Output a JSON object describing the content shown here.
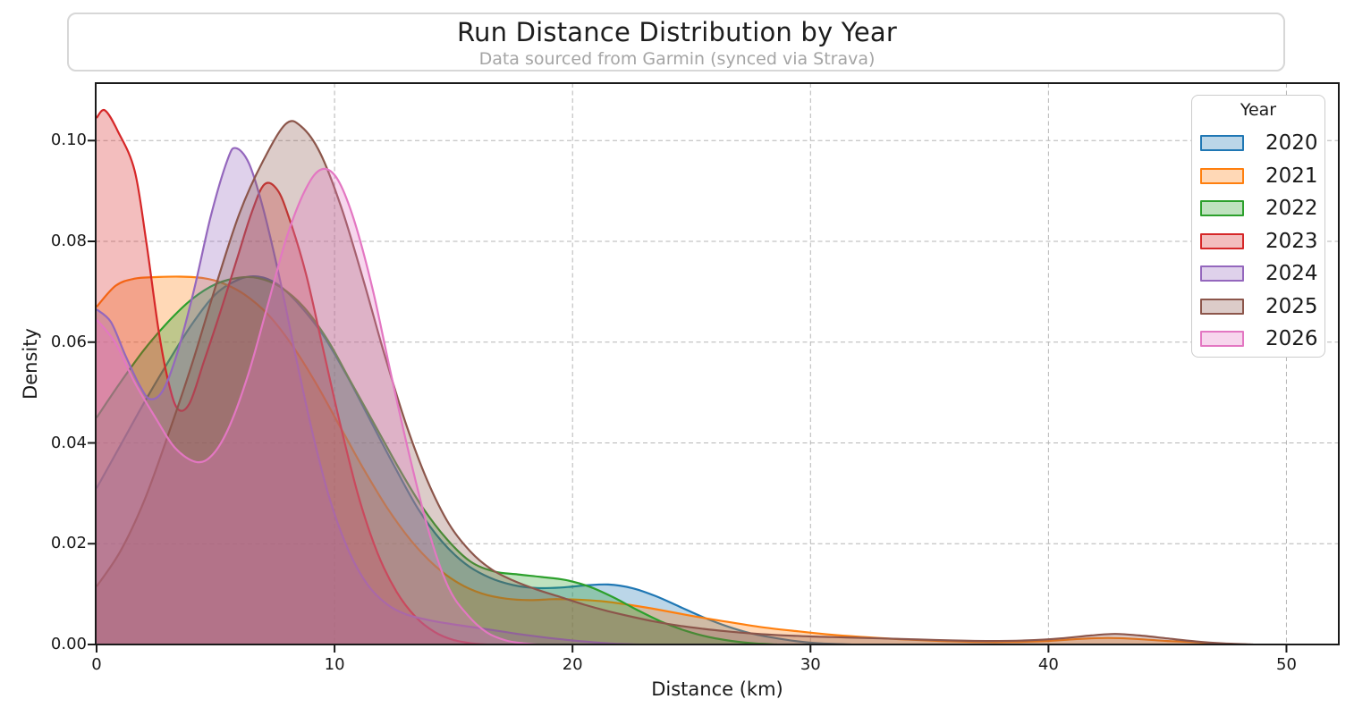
{
  "header": {
    "title": "Run Distance Distribution by Year",
    "subtitle": "Data sourced from Garmin (synced via Strava)"
  },
  "chart_data": {
    "type": "area",
    "subtype": "kde-density-curves",
    "title": "Run Distance Distribution by Year",
    "subtitle": "Data sourced from Garmin (synced via Strava)",
    "xlabel": "Distance (km)",
    "ylabel": "Density",
    "xlim": [
      0,
      52.2
    ],
    "ylim": [
      0,
      0.1114
    ],
    "x_ticks": [
      0,
      10,
      20,
      30,
      40,
      50
    ],
    "x_tick_labels": [
      "0",
      "10",
      "20",
      "30",
      "40",
      "50"
    ],
    "y_ticks": [
      0,
      0.02,
      0.04,
      0.06,
      0.08,
      0.1
    ],
    "y_tick_labels": [
      "0.00",
      "0.02",
      "0.04",
      "0.06",
      "0.08",
      "0.10"
    ],
    "grid": {
      "visible": true,
      "style": "dashed",
      "color": "#b5b5b5",
      "below_data": true
    },
    "legend": {
      "title": "Year",
      "position": "upper right"
    },
    "fill_opacity": 0.3,
    "series": [
      {
        "name": "2020",
        "color": "#1f77b4",
        "peak_km": 6.8,
        "peak_density": 0.073,
        "points": [
          [
            0,
            0.031
          ],
          [
            1,
            0.0395
          ],
          [
            2,
            0.048
          ],
          [
            3,
            0.056
          ],
          [
            4,
            0.0635
          ],
          [
            5,
            0.0695
          ],
          [
            6,
            0.0725
          ],
          [
            6.8,
            0.073
          ],
          [
            7.6,
            0.0715
          ],
          [
            8.5,
            0.0675
          ],
          [
            9.5,
            0.0615
          ],
          [
            10.5,
            0.0535
          ],
          [
            11.5,
            0.0445
          ],
          [
            12.5,
            0.0355
          ],
          [
            13.5,
            0.027
          ],
          [
            14.5,
            0.0205
          ],
          [
            15.5,
            0.016
          ],
          [
            16.5,
            0.0133
          ],
          [
            17.5,
            0.0118
          ],
          [
            18.5,
            0.0112
          ],
          [
            19.5,
            0.0113
          ],
          [
            20.5,
            0.0117
          ],
          [
            21.5,
            0.0119
          ],
          [
            22.5,
            0.0112
          ],
          [
            23.5,
            0.0096
          ],
          [
            24.5,
            0.0075
          ],
          [
            25.5,
            0.0054
          ],
          [
            26.5,
            0.0036
          ],
          [
            27.5,
            0.0022
          ],
          [
            28.5,
            0.0013
          ],
          [
            29.5,
            0.0006
          ],
          [
            30.5,
            0.0002
          ],
          [
            31.7,
            0
          ]
        ]
      },
      {
        "name": "2021",
        "color": "#ff7f0e",
        "peak_km": 3.5,
        "peak_density": 0.073,
        "points": [
          [
            0,
            0.067
          ],
          [
            0.8,
            0.0712
          ],
          [
            1.6,
            0.0726
          ],
          [
            2.5,
            0.0729
          ],
          [
            3.5,
            0.073
          ],
          [
            4.5,
            0.0727
          ],
          [
            5.3,
            0.0717
          ],
          [
            6.2,
            0.0695
          ],
          [
            7.2,
            0.0655
          ],
          [
            8.2,
            0.0595
          ],
          [
            9.2,
            0.052
          ],
          [
            10.2,
            0.0435
          ],
          [
            11.2,
            0.035
          ],
          [
            12.2,
            0.0272
          ],
          [
            13.2,
            0.0207
          ],
          [
            14.2,
            0.0157
          ],
          [
            15.2,
            0.0122
          ],
          [
            16.2,
            0.0101
          ],
          [
            17.2,
            0.0091
          ],
          [
            18.2,
            0.0088
          ],
          [
            19.2,
            0.009
          ],
          [
            20.2,
            0.0089
          ],
          [
            21.2,
            0.0086
          ],
          [
            22.2,
            0.008
          ],
          [
            23.5,
            0.007
          ],
          [
            25,
            0.0057
          ],
          [
            26.5,
            0.0045
          ],
          [
            28,
            0.0034
          ],
          [
            29.5,
            0.0026
          ],
          [
            31,
            0.0019
          ],
          [
            32.5,
            0.0014
          ],
          [
            34,
            0.001
          ],
          [
            35.5,
            0.0007
          ],
          [
            37,
            0.0005
          ],
          [
            38.5,
            0.0005
          ],
          [
            40,
            0.0007
          ],
          [
            41.3,
            0.0011
          ],
          [
            42.5,
            0.0013
          ],
          [
            43.7,
            0.0011
          ],
          [
            45,
            0.0007
          ],
          [
            46.3,
            0.0004
          ],
          [
            47.5,
            0.0001
          ],
          [
            48.3,
            0
          ]
        ]
      },
      {
        "name": "2022",
        "color": "#2ca02c",
        "peak_km": 6.4,
        "peak_density": 0.0728,
        "points": [
          [
            0,
            0.045
          ],
          [
            1,
            0.052
          ],
          [
            2,
            0.0585
          ],
          [
            3,
            0.064
          ],
          [
            4,
            0.0685
          ],
          [
            5,
            0.0715
          ],
          [
            6,
            0.0728
          ],
          [
            6.8,
            0.0727
          ],
          [
            7.7,
            0.071
          ],
          [
            8.7,
            0.067
          ],
          [
            9.7,
            0.0605
          ],
          [
            10.7,
            0.052
          ],
          [
            11.7,
            0.0435
          ],
          [
            12.7,
            0.035
          ],
          [
            13.7,
            0.0272
          ],
          [
            14.7,
            0.021
          ],
          [
            15.7,
            0.0165
          ],
          [
            16.7,
            0.0145
          ],
          [
            17.7,
            0.0139
          ],
          [
            18.7,
            0.0134
          ],
          [
            19.7,
            0.0128
          ],
          [
            20.7,
            0.0115
          ],
          [
            21.7,
            0.0094
          ],
          [
            22.7,
            0.0069
          ],
          [
            23.7,
            0.0046
          ],
          [
            24.7,
            0.0028
          ],
          [
            25.7,
            0.0015
          ],
          [
            26.7,
            0.0007
          ],
          [
            27.7,
            0.0002
          ],
          [
            28.6,
            0
          ]
        ]
      },
      {
        "name": "2023",
        "color": "#d62728",
        "peak_km": 0.35,
        "peak_density": 0.106,
        "points": [
          [
            0,
            0.1045
          ],
          [
            0.35,
            0.106
          ],
          [
            0.9,
            0.1018
          ],
          [
            1.6,
            0.094
          ],
          [
            2.1,
            0.0795
          ],
          [
            2.6,
            0.0625
          ],
          [
            3.0,
            0.0525
          ],
          [
            3.4,
            0.0468
          ],
          [
            3.9,
            0.0478
          ],
          [
            4.5,
            0.056
          ],
          [
            5.2,
            0.066
          ],
          [
            5.9,
            0.0765
          ],
          [
            6.5,
            0.0855
          ],
          [
            7.05,
            0.0913
          ],
          [
            7.6,
            0.0902
          ],
          [
            8.1,
            0.0845
          ],
          [
            8.8,
            0.0735
          ],
          [
            9.5,
            0.059
          ],
          [
            10.2,
            0.0445
          ],
          [
            11,
            0.0295
          ],
          [
            11.8,
            0.0182
          ],
          [
            12.6,
            0.0105
          ],
          [
            13.4,
            0.0055
          ],
          [
            14.2,
            0.0025
          ],
          [
            15,
            0.0009
          ],
          [
            15.8,
            0.0002
          ],
          [
            16.4,
            0
          ]
        ]
      },
      {
        "name": "2024",
        "color": "#9467bd",
        "peak_km": 5.8,
        "peak_density": 0.0985,
        "points": [
          [
            0,
            0.0665
          ],
          [
            0.6,
            0.064
          ],
          [
            1.2,
            0.0575
          ],
          [
            1.8,
            0.0515
          ],
          [
            2.25,
            0.0487
          ],
          [
            2.8,
            0.0505
          ],
          [
            3.4,
            0.058
          ],
          [
            4.1,
            0.0705
          ],
          [
            4.8,
            0.085
          ],
          [
            5.5,
            0.0962
          ],
          [
            5.85,
            0.0985
          ],
          [
            6.4,
            0.0955
          ],
          [
            7,
            0.0865
          ],
          [
            7.7,
            0.0725
          ],
          [
            8.4,
            0.0565
          ],
          [
            9.1,
            0.0415
          ],
          [
            9.8,
            0.0288
          ],
          [
            10.6,
            0.0185
          ],
          [
            11.4,
            0.0118
          ],
          [
            12.2,
            0.008
          ],
          [
            13,
            0.006
          ],
          [
            14,
            0.0048
          ],
          [
            15,
            0.004
          ],
          [
            16,
            0.0033
          ],
          [
            17,
            0.0026
          ],
          [
            18,
            0.0019
          ],
          [
            19,
            0.0013
          ],
          [
            20,
            0.0008
          ],
          [
            21,
            0.0004
          ],
          [
            22,
            0.0001
          ],
          [
            22.8,
            0
          ]
        ]
      },
      {
        "name": "2025",
        "color": "#8c564b",
        "peak_km": 8.0,
        "peak_density": 0.1035,
        "points": [
          [
            0,
            0.0115
          ],
          [
            1,
            0.0185
          ],
          [
            2,
            0.0285
          ],
          [
            3,
            0.0415
          ],
          [
            4,
            0.0555
          ],
          [
            5,
            0.071
          ],
          [
            6,
            0.0855
          ],
          [
            7,
            0.096
          ],
          [
            7.95,
            0.1033
          ],
          [
            8.6,
            0.1028
          ],
          [
            9.4,
            0.0975
          ],
          [
            10.3,
            0.0865
          ],
          [
            11.2,
            0.0725
          ],
          [
            12.1,
            0.0575
          ],
          [
            13,
            0.0438
          ],
          [
            13.9,
            0.0325
          ],
          [
            14.8,
            0.024
          ],
          [
            15.7,
            0.0185
          ],
          [
            16.6,
            0.0149
          ],
          [
            17.5,
            0.0127
          ],
          [
            18.5,
            0.0109
          ],
          [
            19.5,
            0.0094
          ],
          [
            20.5,
            0.0079
          ],
          [
            21.5,
            0.0066
          ],
          [
            22.5,
            0.0055
          ],
          [
            23.5,
            0.0045
          ],
          [
            24.5,
            0.0037
          ],
          [
            25.5,
            0.0031
          ],
          [
            26.5,
            0.0026
          ],
          [
            27.5,
            0.0022
          ],
          [
            28.5,
            0.0019
          ],
          [
            30,
            0.0016
          ],
          [
            31.5,
            0.0014
          ],
          [
            33,
            0.0012
          ],
          [
            34.5,
            0.001
          ],
          [
            36,
            0.0008
          ],
          [
            37.5,
            0.0007
          ],
          [
            39,
            0.0008
          ],
          [
            40.5,
            0.0012
          ],
          [
            41.8,
            0.0018
          ],
          [
            42.8,
            0.0021
          ],
          [
            43.8,
            0.0018
          ],
          [
            45,
            0.0012
          ],
          [
            46.2,
            0.0006
          ],
          [
            47.4,
            0.0002
          ],
          [
            48.6,
            0
          ]
        ]
      },
      {
        "name": "2026",
        "color": "#e377c2",
        "peak_km": 9.45,
        "peak_density": 0.0943,
        "points": [
          [
            0,
            0.0645
          ],
          [
            0.8,
            0.0598
          ],
          [
            1.6,
            0.052
          ],
          [
            2.5,
            0.0448
          ],
          [
            3.3,
            0.039
          ],
          [
            4.2,
            0.0362
          ],
          [
            4.9,
            0.0378
          ],
          [
            5.6,
            0.0435
          ],
          [
            6.4,
            0.054
          ],
          [
            7.2,
            0.0675
          ],
          [
            8,
            0.081
          ],
          [
            8.8,
            0.0905
          ],
          [
            9.45,
            0.0943
          ],
          [
            10.1,
            0.0925
          ],
          [
            10.8,
            0.0845
          ],
          [
            11.6,
            0.0705
          ],
          [
            12.4,
            0.053
          ],
          [
            13.2,
            0.0365
          ],
          [
            14,
            0.0218
          ],
          [
            14.8,
            0.0112
          ],
          [
            15.6,
            0.0058
          ],
          [
            16.4,
            0.0024
          ],
          [
            17.2,
            0.0008
          ],
          [
            18,
            0.0002
          ],
          [
            18.5,
            0
          ]
        ]
      }
    ]
  },
  "style": {
    "spine_color": "#1a1a1a",
    "grid_color": "#b5b5b5",
    "title_box_border": "#d7d7d7",
    "subtitle_color": "#a5a5a5",
    "background": "#ffffff"
  }
}
